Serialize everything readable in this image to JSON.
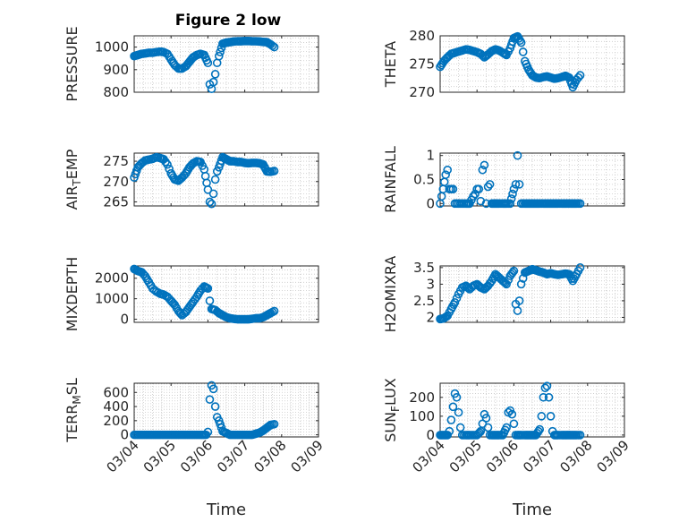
{
  "chart_data": {
    "type": "scatter",
    "title": "Figure 2 low",
    "xlabel": "Time",
    "x_tick_labels": [
      "03/04",
      "03/05",
      "03/06",
      "03/07",
      "03/08",
      "03/09"
    ],
    "x_range_days": [
      0,
      5
    ],
    "marker": "circle",
    "marker_color": "#0072bd",
    "grid": true,
    "panels": [
      {
        "name": "pressure",
        "ylabel": "PRESSURE",
        "ylim": [
          800,
          1050
        ],
        "yticks": [
          "800",
          "900",
          "1000"
        ],
        "ytick_values": [
          800,
          900,
          1000
        ],
        "x": [
          0.0,
          0.1,
          0.2,
          0.3,
          0.4,
          0.5,
          0.6,
          0.7,
          0.8,
          0.9,
          1.0,
          1.1,
          1.2,
          1.3,
          1.4,
          1.5,
          1.6,
          1.7,
          1.8,
          1.9,
          2.0,
          2.05,
          2.1,
          2.15,
          2.2,
          2.25,
          2.3,
          2.4,
          2.5,
          2.6,
          2.7,
          2.8,
          2.9,
          3.0,
          3.1,
          3.2,
          3.3,
          3.4,
          3.5,
          3.6,
          3.7,
          3.8
        ],
        "y": [
          960,
          965,
          970,
          972,
          975,
          975,
          978,
          980,
          978,
          970,
          945,
          920,
          905,
          905,
          915,
          935,
          955,
          965,
          970,
          965,
          930,
          835,
          815,
          845,
          880,
          930,
          960,
          1015,
          1020,
          1022,
          1025,
          1026,
          1026,
          1027,
          1027,
          1026,
          1026,
          1025,
          1023,
          1022,
          1012,
          1000
        ]
      },
      {
        "name": "theta",
        "ylabel": "THETA",
        "ylim": [
          270,
          280
        ],
        "yticks": [
          "270",
          "275",
          "280"
        ],
        "ytick_values": [
          270,
          275,
          280
        ],
        "x": [
          0.0,
          0.1,
          0.2,
          0.3,
          0.4,
          0.5,
          0.6,
          0.7,
          0.8,
          0.9,
          1.0,
          1.1,
          1.2,
          1.3,
          1.4,
          1.5,
          1.6,
          1.7,
          1.8,
          1.9,
          2.0,
          2.1,
          2.2,
          2.3,
          2.4,
          2.5,
          2.6,
          2.7,
          2.8,
          2.9,
          3.0,
          3.1,
          3.2,
          3.3,
          3.4,
          3.5,
          3.6,
          3.7,
          3.8
        ],
        "y": [
          274.5,
          275.5,
          276.2,
          276.8,
          277.0,
          277.2,
          277.4,
          277.6,
          277.5,
          277.3,
          277.1,
          276.8,
          276.2,
          276.7,
          277.3,
          277.6,
          277.4,
          277.0,
          276.6,
          277.8,
          279.6,
          279.9,
          278.8,
          275.5,
          274.0,
          273.0,
          272.6,
          272.5,
          272.7,
          272.8,
          272.6,
          272.4,
          272.5,
          272.7,
          272.9,
          272.6,
          270.9,
          272.2,
          273.0
        ]
      },
      {
        "name": "air-temp",
        "ylabel": "AIR_TEMP",
        "ylim": [
          264,
          277
        ],
        "yticks": [
          "265",
          "270",
          "275"
        ],
        "ytick_values": [
          265,
          270,
          275
        ],
        "x": [
          0.0,
          0.1,
          0.2,
          0.3,
          0.4,
          0.5,
          0.6,
          0.7,
          0.8,
          0.9,
          1.0,
          1.1,
          1.2,
          1.3,
          1.4,
          1.5,
          1.6,
          1.7,
          1.8,
          1.9,
          2.0,
          2.05,
          2.1,
          2.15,
          2.2,
          2.25,
          2.3,
          2.4,
          2.5,
          2.6,
          2.7,
          2.8,
          2.9,
          3.0,
          3.1,
          3.2,
          3.3,
          3.4,
          3.5,
          3.6,
          3.7,
          3.8
        ],
        "y": [
          271,
          273.5,
          274.5,
          275.2,
          275.4,
          275.6,
          276,
          275.8,
          275.5,
          274.2,
          272,
          270.5,
          270.2,
          271,
          272,
          273.5,
          274.5,
          275,
          274.8,
          273,
          268,
          265,
          264.5,
          267,
          270.5,
          272.5,
          273.5,
          276,
          275.5,
          275,
          275,
          274.8,
          274.8,
          274.6,
          274.5,
          274.6,
          274.6,
          274.5,
          274.2,
          272.5,
          272.4,
          272.6
        ]
      },
      {
        "name": "rainfall",
        "ylabel": "RAINFALL",
        "ylim": [
          -0.05,
          1.05
        ],
        "yticks": [
          "0",
          "0.5",
          "1"
        ],
        "ytick_values": [
          0,
          0.5,
          1
        ],
        "x": [
          0.0,
          0.08,
          0.15,
          0.2,
          0.25,
          0.3,
          0.35,
          0.4,
          0.5,
          0.6,
          0.7,
          0.8,
          0.9,
          0.95,
          1.0,
          1.05,
          1.1,
          1.15,
          1.2,
          1.25,
          1.3,
          1.35,
          1.4,
          1.5,
          1.6,
          1.7,
          1.8,
          1.9,
          2.0,
          2.05,
          2.1,
          2.15,
          2.2,
          2.3,
          2.4,
          2.5,
          2.6,
          2.7,
          2.8,
          2.9,
          3.0,
          3.1,
          3.2,
          3.3,
          3.4,
          3.5,
          3.6,
          3.7,
          3.8
        ],
        "y": [
          0,
          0.3,
          0.6,
          0.7,
          0.3,
          0.3,
          0.3,
          0,
          0,
          0,
          0,
          0,
          0.15,
          0.2,
          0.3,
          0.3,
          0.05,
          0.7,
          0.8,
          0,
          0.35,
          0.4,
          0,
          0,
          0,
          0,
          0,
          0,
          0.3,
          0.4,
          1.0,
          0.4,
          0,
          0,
          0,
          0,
          0,
          0,
          0,
          0,
          0,
          0,
          0,
          0,
          0,
          0,
          0,
          0,
          0
        ]
      },
      {
        "name": "mixdepth",
        "ylabel": "MIXDEPTH",
        "ylim": [
          -150,
          2600
        ],
        "yticks": [
          "0",
          "1000",
          "2000"
        ],
        "ytick_values": [
          0,
          1000,
          2000
        ],
        "x": [
          0.0,
          0.1,
          0.2,
          0.3,
          0.4,
          0.5,
          0.6,
          0.7,
          0.8,
          0.9,
          1.0,
          1.1,
          1.2,
          1.3,
          1.4,
          1.5,
          1.6,
          1.7,
          1.8,
          1.9,
          2.0,
          2.05,
          2.1,
          2.2,
          2.3,
          2.4,
          2.5,
          2.6,
          2.7,
          2.8,
          2.9,
          3.0,
          3.1,
          3.2,
          3.3,
          3.4,
          3.5,
          3.6,
          3.7,
          3.8
        ],
        "y": [
          2450,
          2350,
          2300,
          2100,
          1800,
          1500,
          1350,
          1250,
          1200,
          1100,
          900,
          700,
          400,
          200,
          350,
          600,
          850,
          1100,
          1400,
          1600,
          1500,
          900,
          500,
          450,
          300,
          200,
          100,
          50,
          20,
          0,
          0,
          0,
          0,
          20,
          50,
          50,
          100,
          200,
          300,
          400
        ]
      },
      {
        "name": "h2omixra",
        "ylabel": "H2OMIXRA",
        "ylim": [
          1.85,
          3.55
        ],
        "yticks": [
          "2",
          "2.5",
          "3",
          "3.5"
        ],
        "ytick_values": [
          2,
          2.5,
          3,
          3.5
        ],
        "x": [
          0.0,
          0.1,
          0.2,
          0.3,
          0.4,
          0.5,
          0.6,
          0.7,
          0.8,
          0.9,
          1.0,
          1.1,
          1.2,
          1.3,
          1.4,
          1.5,
          1.6,
          1.7,
          1.8,
          1.9,
          2.0,
          2.05,
          2.1,
          2.15,
          2.2,
          2.3,
          2.4,
          2.5,
          2.6,
          2.7,
          2.8,
          2.9,
          3.0,
          3.1,
          3.2,
          3.3,
          3.4,
          3.5,
          3.6,
          3.7,
          3.8
        ],
        "y": [
          1.95,
          1.97,
          2.05,
          2.25,
          2.45,
          2.7,
          2.9,
          2.95,
          2.85,
          2.95,
          3.0,
          2.9,
          2.85,
          2.95,
          3.1,
          3.3,
          3.2,
          3.1,
          3.0,
          3.25,
          3.4,
          2.4,
          2.2,
          2.5,
          3.0,
          3.35,
          3.4,
          3.45,
          3.42,
          3.38,
          3.35,
          3.3,
          3.33,
          3.3,
          3.28,
          3.3,
          3.32,
          3.3,
          3.1,
          3.3,
          3.5
        ]
      },
      {
        "name": "terr-msl",
        "ylabel": "TERR_MSL",
        "ylim": [
          -30,
          730
        ],
        "yticks": [
          "0",
          "200",
          "400",
          "600"
        ],
        "ytick_values": [
          0,
          200,
          400,
          600
        ],
        "x": [
          0.0,
          0.2,
          0.4,
          0.6,
          0.8,
          1.0,
          1.2,
          1.4,
          1.6,
          1.8,
          1.95,
          2.0,
          2.05,
          2.1,
          2.15,
          2.2,
          2.25,
          2.3,
          2.4,
          2.6,
          2.8,
          3.0,
          3.2,
          3.4,
          3.5,
          3.6,
          3.7,
          3.8
        ],
        "y": [
          0,
          0,
          0,
          0,
          0,
          0,
          0,
          0,
          0,
          0,
          0,
          40,
          500,
          700,
          650,
          400,
          250,
          200,
          50,
          0,
          0,
          0,
          0,
          30,
          60,
          100,
          140,
          150
        ]
      },
      {
        "name": "sun-flux",
        "ylabel": "SUN_FLUX",
        "ylim": [
          -10,
          275
        ],
        "yticks": [
          "0",
          "100",
          "200"
        ],
        "ytick_values": [
          0,
          100,
          200
        ],
        "x": [
          0.0,
          0.1,
          0.2,
          0.25,
          0.3,
          0.35,
          0.4,
          0.45,
          0.5,
          0.55,
          0.6,
          0.7,
          0.8,
          0.9,
          1.0,
          1.1,
          1.15,
          1.2,
          1.25,
          1.3,
          1.35,
          1.4,
          1.5,
          1.6,
          1.7,
          1.8,
          1.85,
          1.9,
          1.95,
          2.0,
          2.05,
          2.1,
          2.2,
          2.3,
          2.4,
          2.5,
          2.6,
          2.7,
          2.75,
          2.8,
          2.85,
          2.9,
          2.95,
          3.0,
          3.05,
          3.1,
          3.2,
          3.3,
          3.4,
          3.5,
          3.6,
          3.7,
          3.8
        ],
        "y": [
          0,
          0,
          0,
          20,
          80,
          150,
          220,
          200,
          120,
          40,
          0,
          0,
          0,
          0,
          0,
          20,
          60,
          110,
          90,
          40,
          0,
          0,
          0,
          0,
          0,
          40,
          120,
          130,
          110,
          60,
          0,
          0,
          0,
          0,
          0,
          0,
          0,
          30,
          100,
          200,
          250,
          260,
          200,
          100,
          20,
          0,
          0,
          0,
          0,
          0,
          0,
          0,
          0
        ]
      }
    ]
  }
}
